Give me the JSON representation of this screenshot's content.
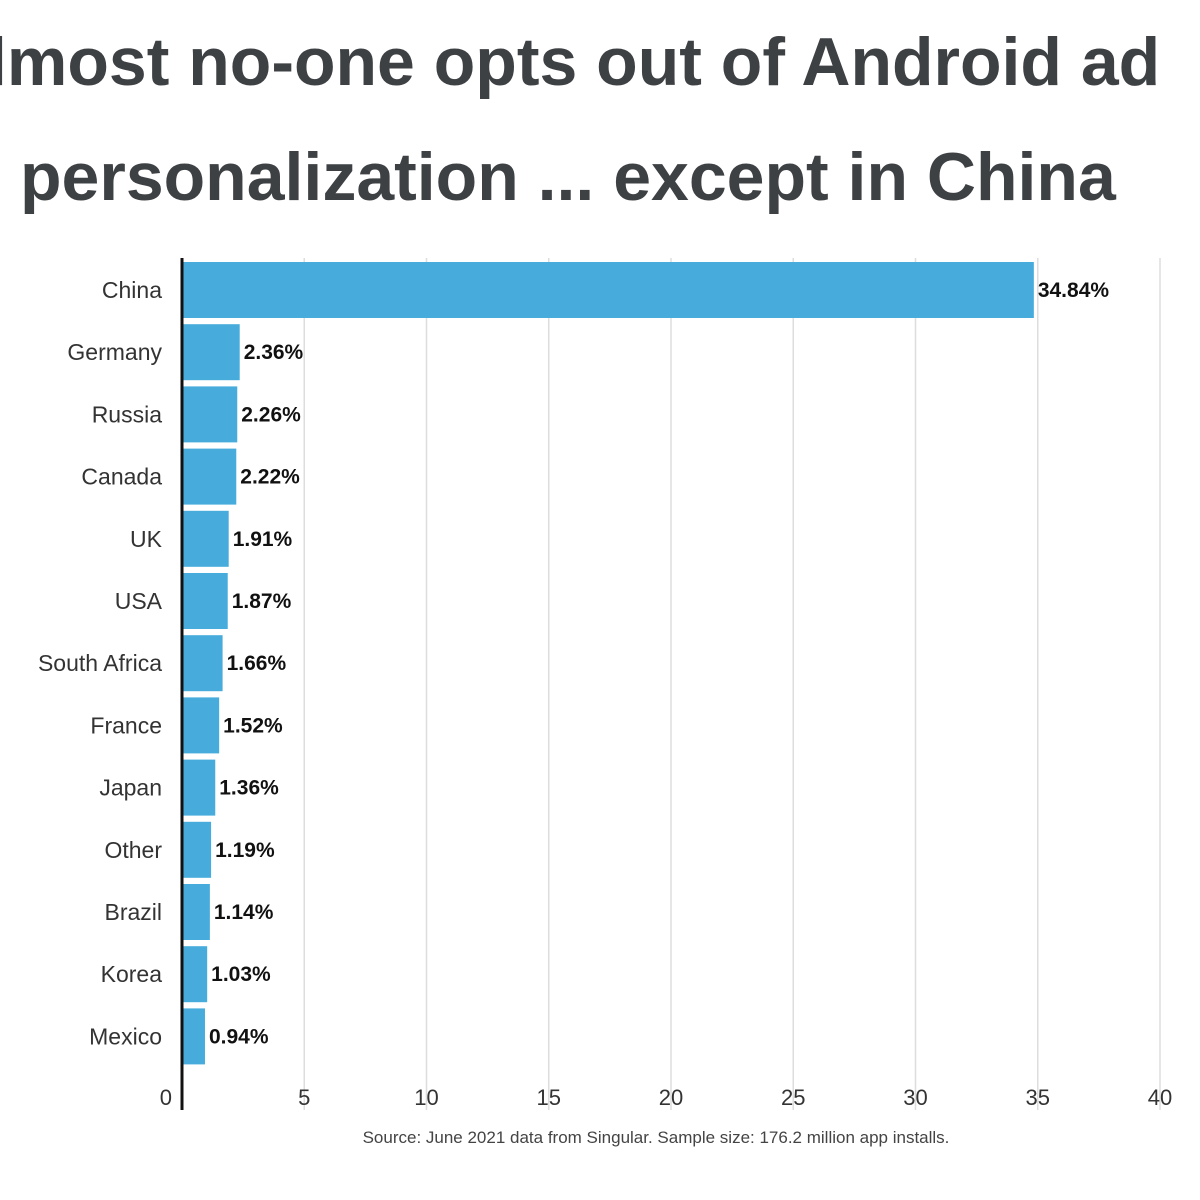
{
  "title_lines": [
    "lmost no-one opts out of Android ad",
    "personalization ... except in China"
  ],
  "source_note": "Source: June 2021 data from Singular. Sample size: 176.2 million app installs.",
  "colors": {
    "bar": "#47acdc",
    "title": "#3e4144",
    "grid": "#dddddd",
    "axis": "#111111"
  },
  "chart_data": {
    "type": "bar",
    "orientation": "horizontal",
    "title": "lmost no-one opts out of Android ad personalization ... except in China",
    "categories": [
      "China",
      "Germany",
      "Russia",
      "Canada",
      "UK",
      "USA",
      "South Africa",
      "France",
      "Japan",
      "Other",
      "Brazil",
      "Korea",
      "Mexico"
    ],
    "values": [
      34.84,
      2.36,
      2.26,
      2.22,
      1.91,
      1.87,
      1.66,
      1.52,
      1.36,
      1.19,
      1.14,
      1.03,
      0.94
    ],
    "value_labels": [
      "34.84%",
      "2.36%",
      "2.26%",
      "2.22%",
      "1.91%",
      "1.87%",
      "1.66%",
      "1.52%",
      "1.36%",
      "1.19%",
      "1.14%",
      "1.03%",
      "0.94%"
    ],
    "xlim": [
      0,
      40
    ],
    "xticks": [
      0,
      5,
      10,
      15,
      20,
      25,
      30,
      35,
      40
    ],
    "xtick_labels": [
      "0",
      "5",
      "10",
      "15",
      "20",
      "25",
      "30",
      "35",
      "40"
    ],
    "xlabel": "",
    "ylabel": "",
    "grid": "vertical",
    "legend": "none"
  }
}
